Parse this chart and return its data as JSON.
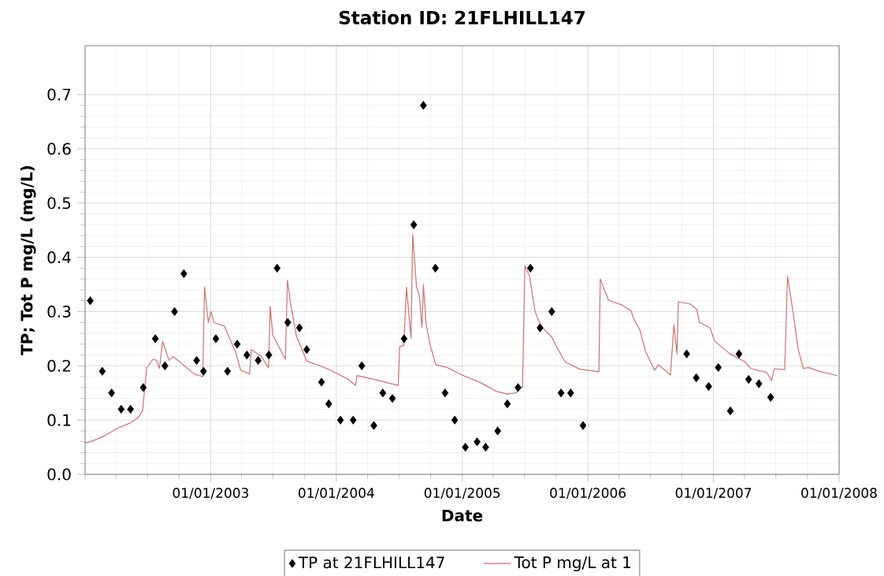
{
  "chart_data": {
    "type": "line",
    "title": "Station ID: 21FLHILL147",
    "xlabel": "Date",
    "ylabel": "TP; Tot P mg/L  (mg/L)",
    "xlim": [
      "2002-01-01",
      "2008-01-01"
    ],
    "xticks": [
      {
        "value": "2003-01-01",
        "label": "01/01/2003"
      },
      {
        "value": "2004-01-01",
        "label": "01/01/2004"
      },
      {
        "value": "2005-01-01",
        "label": "01/01/2005"
      },
      {
        "value": "2006-01-01",
        "label": "01/01/2006"
      },
      {
        "value": "2007-01-01",
        "label": "01/01/2007"
      },
      {
        "value": "2008-01-01",
        "label": "01/01/2008"
      }
    ],
    "ylim": [
      0,
      0.79
    ],
    "yticks": [
      {
        "value": 0,
        "label": "0.0"
      },
      {
        "value": 0.1,
        "label": "0.1"
      },
      {
        "value": 0.2,
        "label": "0.2"
      },
      {
        "value": 0.3,
        "label": "0.3"
      },
      {
        "value": 0.4,
        "label": "0.4"
      },
      {
        "value": 0.5,
        "label": "0.5"
      },
      {
        "value": 0.6,
        "label": "0.6"
      },
      {
        "value": 0.7,
        "label": "0.7"
      }
    ],
    "grid": true,
    "legend": "bottom",
    "series": [
      {
        "name": "TP at 21FLHILL147",
        "type": "scatter",
        "marker": "diamond",
        "color": "#000000",
        "x": [
          "2002-01-16",
          "2002-02-20",
          "2002-03-19",
          "2002-04-16",
          "2002-05-13",
          "2002-06-19",
          "2002-07-24",
          "2002-08-21",
          "2002-09-18",
          "2002-10-15",
          "2002-11-21",
          "2002-12-11",
          "2003-01-16",
          "2003-02-19",
          "2003-03-19",
          "2003-04-16",
          "2003-05-19",
          "2003-06-19",
          "2003-07-13",
          "2003-08-13",
          "2003-09-16",
          "2003-10-07",
          "2003-11-19",
          "2003-12-10",
          "2004-01-13",
          "2004-02-19",
          "2004-03-15",
          "2004-04-19",
          "2004-05-15",
          "2004-06-12",
          "2004-07-16",
          "2004-08-13",
          "2004-09-10",
          "2004-10-15",
          "2004-11-12",
          "2004-12-10",
          "2005-01-10",
          "2005-02-13",
          "2005-03-10",
          "2005-04-14",
          "2005-05-12",
          "2005-06-12",
          "2005-07-18",
          "2005-08-15",
          "2005-09-18",
          "2005-10-15",
          "2005-11-12",
          "2005-12-18",
          "2006-10-15",
          "2006-11-12",
          "2006-12-18",
          "2007-01-15",
          "2007-02-19",
          "2007-03-16",
          "2007-04-13",
          "2007-05-13",
          "2007-06-16"
        ],
        "values": [
          0.32,
          0.19,
          0.15,
          0.12,
          0.12,
          0.16,
          0.25,
          0.2,
          0.3,
          0.37,
          0.21,
          0.19,
          0.25,
          0.19,
          0.24,
          0.22,
          0.21,
          0.22,
          0.38,
          0.28,
          0.27,
          0.23,
          0.17,
          0.13,
          0.1,
          0.1,
          0.2,
          0.09,
          0.15,
          0.14,
          0.25,
          0.46,
          0.68,
          0.38,
          0.15,
          0.1,
          0.05,
          0.06,
          0.05,
          0.08,
          0.13,
          0.16,
          0.38,
          0.27,
          0.3,
          0.15,
          0.15,
          0.09,
          0.222,
          0.178,
          0.162,
          0.197,
          0.117,
          0.222,
          0.175,
          0.167,
          0.142
        ]
      },
      {
        "name": "Tot P mg/L at 1",
        "type": "line",
        "marker": "none",
        "line_style": "solid",
        "color": "#d07070",
        "x": [
          "2002-01-01",
          "2002-01-05",
          "2002-01-28",
          "2002-02-27",
          "2002-04-05",
          "2002-05-13",
          "2002-06-05",
          "2002-06-17",
          "2002-06-24",
          "2002-06-29",
          "2002-07-06",
          "2002-07-17",
          "2002-07-28",
          "2002-08-05",
          "2002-08-14",
          "2002-09-02",
          "2002-09-14",
          "2002-11-14",
          "2002-12-09",
          "2002-12-14",
          "2002-12-25",
          "2003-01-02",
          "2003-01-10",
          "2003-02-10",
          "2003-02-28",
          "2003-03-14",
          "2003-03-29",
          "2003-04-24",
          "2003-04-29",
          "2003-05-29",
          "2003-06-18",
          "2003-06-23",
          "2003-06-30",
          "2003-08-06",
          "2003-08-12",
          "2003-08-22",
          "2003-09-07",
          "2003-10-07",
          "2003-11-15",
          "2003-12-15",
          "2004-02-02",
          "2004-02-26",
          "2004-03-01",
          "2004-04-14",
          "2004-06-29",
          "2004-07-03",
          "2004-07-15",
          "2004-07-23",
          "2004-08-05",
          "2004-08-10",
          "2004-08-21",
          "2004-08-29",
          "2004-09-06",
          "2004-09-10",
          "2004-09-18",
          "2004-09-30",
          "2004-10-16",
          "2004-11-18",
          "2004-12-28",
          "2005-02-23",
          "2005-04-10",
          "2005-05-12",
          "2005-06-05",
          "2005-06-25",
          "2005-07-02",
          "2005-07-15",
          "2005-08-01",
          "2005-08-17",
          "2005-09-18",
          "2005-10-04",
          "2005-10-27",
          "2005-12-08",
          "2006-02-02",
          "2006-02-06",
          "2006-03-02",
          "2006-04-10",
          "2006-05-06",
          "2006-05-14",
          "2006-06-02",
          "2006-06-17",
          "2006-07-14",
          "2006-07-25",
          "2006-08-29",
          "2006-09-08",
          "2006-09-17",
          "2006-09-21",
          "2006-10-25",
          "2006-11-14",
          "2006-11-21",
          "2006-12-22",
          "2007-01-04",
          "2007-02-18",
          "2007-04-04",
          "2007-04-19",
          "2007-06-04",
          "2007-06-19",
          "2007-06-27",
          "2007-07-27",
          "2007-08-04",
          "2007-08-19",
          "2007-09-04",
          "2007-09-19",
          "2007-10-04",
          "2007-11-04",
          "2007-12-19",
          "2007-12-27"
        ],
        "values": [
          0.06,
          0.058,
          0.063,
          0.071,
          0.085,
          0.095,
          0.105,
          0.117,
          0.163,
          0.197,
          0.202,
          0.212,
          0.21,
          0.195,
          0.245,
          0.21,
          0.217,
          0.185,
          0.18,
          0.345,
          0.28,
          0.3,
          0.28,
          0.273,
          0.246,
          0.226,
          0.192,
          0.185,
          0.23,
          0.217,
          0.196,
          0.31,
          0.257,
          0.212,
          0.358,
          0.311,
          0.255,
          0.209,
          0.2,
          0.192,
          0.176,
          0.164,
          0.182,
          0.176,
          0.164,
          0.235,
          0.238,
          0.345,
          0.251,
          0.442,
          0.346,
          0.33,
          0.271,
          0.35,
          0.276,
          0.238,
          0.202,
          0.197,
          0.184,
          0.169,
          0.153,
          0.148,
          0.15,
          0.162,
          0.384,
          0.366,
          0.299,
          0.274,
          0.253,
          0.233,
          0.207,
          0.194,
          0.189,
          0.36,
          0.321,
          0.312,
          0.302,
          0.287,
          0.265,
          0.227,
          0.192,
          0.202,
          0.183,
          0.276,
          0.222,
          0.318,
          0.314,
          0.304,
          0.28,
          0.27,
          0.246,
          0.222,
          0.207,
          0.195,
          0.188,
          0.173,
          0.195,
          0.193,
          0.365,
          0.304,
          0.231,
          0.195,
          0.197,
          0.19,
          0.183,
          0.182
        ]
      }
    ]
  }
}
